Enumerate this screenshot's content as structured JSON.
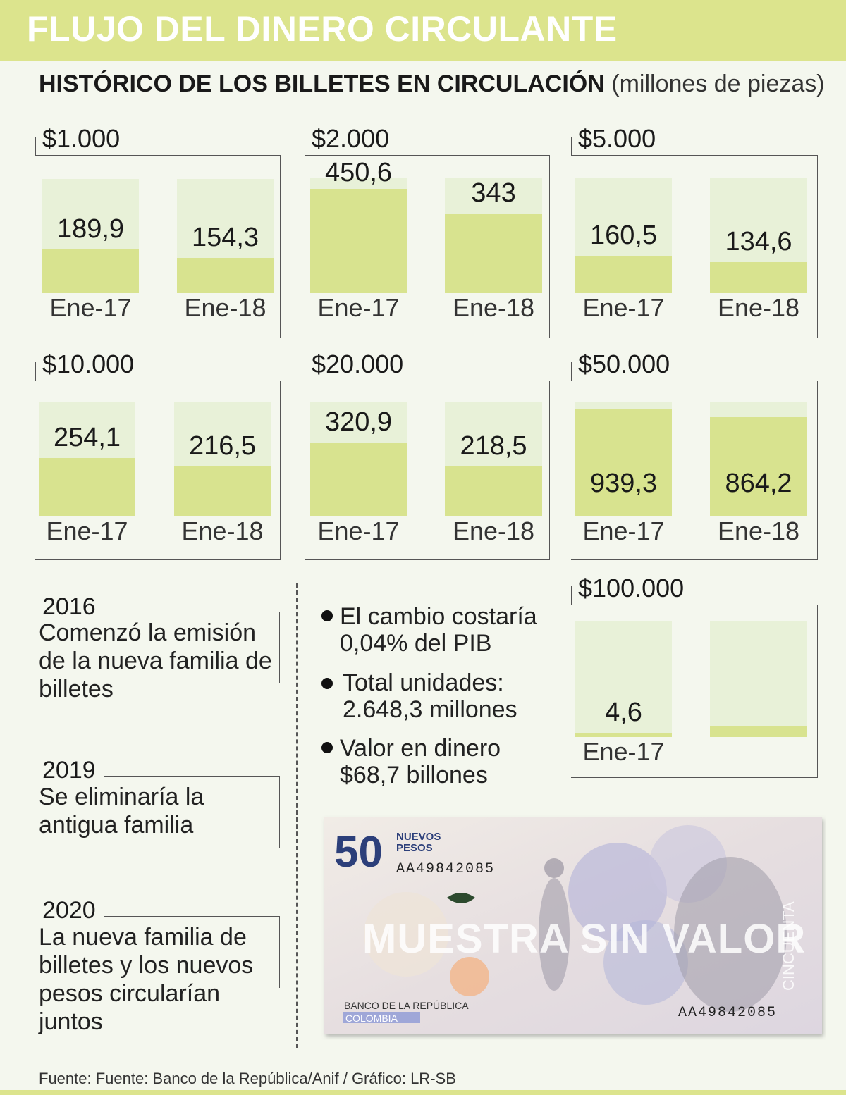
{
  "header": {
    "title": "FLUJO DEL DINERO CIRCULANTE",
    "subtitle_bold": "HISTÓRICO DE LOS BILLETES EN CIRCULACIÓN",
    "subtitle_light": "(millones de piezas)"
  },
  "chart_data": [
    {
      "type": "bar",
      "title": "$1.000",
      "categories": [
        "Ene-17",
        "Ene-18"
      ],
      "values": [
        189.9,
        154.3
      ],
      "labels": [
        "189,9",
        "154,3"
      ],
      "ylim": [
        0,
        500
      ]
    },
    {
      "type": "bar",
      "title": "$2.000",
      "categories": [
        "Ene-17",
        "Ene-18"
      ],
      "values": [
        450.6,
        343
      ],
      "labels": [
        "450,6",
        "343"
      ],
      "ylim": [
        0,
        500
      ]
    },
    {
      "type": "bar",
      "title": "$5.000",
      "categories": [
        "Ene-17",
        "Ene-18"
      ],
      "values": [
        160.5,
        134.6
      ],
      "labels": [
        "160,5",
        "134,6"
      ],
      "ylim": [
        0,
        500
      ]
    },
    {
      "type": "bar",
      "title": "$10.000",
      "categories": [
        "Ene-17",
        "Ene-18"
      ],
      "values": [
        254.1,
        216.5
      ],
      "labels": [
        "254,1",
        "216,5"
      ],
      "ylim": [
        0,
        500
      ]
    },
    {
      "type": "bar",
      "title": "$20.000",
      "categories": [
        "Ene-17",
        "Ene-18"
      ],
      "values": [
        320.9,
        218.5
      ],
      "labels": [
        "320,9",
        "218,5"
      ],
      "ylim": [
        0,
        500
      ]
    },
    {
      "type": "bar",
      "title": "$50.000",
      "categories": [
        "Ene-17",
        "Ene-18"
      ],
      "values": [
        939.3,
        864.2
      ],
      "labels": [
        "939,3",
        "864,2"
      ],
      "ylim": [
        0,
        1000
      ]
    },
    {
      "type": "bar",
      "title": "$100.000",
      "categories": [
        "Ene-17",
        ""
      ],
      "values": [
        4.6,
        null
      ],
      "labels": [
        "4,6",
        ""
      ],
      "ylim": [
        0,
        250
      ]
    }
  ],
  "timeline": [
    {
      "year": "2016",
      "text": "Comenzó la emisión de la nueva familia de billetes"
    },
    {
      "year": "2019",
      "text": "Se eliminaría la antigua familia"
    },
    {
      "year": "2020",
      "text": "La nueva familia  de billetes y los nuevos pesos circularían juntos"
    }
  ],
  "facts": [
    {
      "line1": "El cambio costaría",
      "line2": "0,04% del PIB"
    },
    {
      "line1": "Total unidades:",
      "line2": "2.648,3 millones"
    },
    {
      "line1": "Valor en dinero",
      "line2": "$68,7 billones"
    }
  ],
  "banknote": {
    "denomination": "50",
    "currency_line1": "NUEVOS",
    "currency_line2": "PESOS",
    "serial": "AA49842085",
    "watermark": "MUESTRA SIN VALOR",
    "vertical_text": "CINCUENTA",
    "issuer": "BANCO DE LA REPÚBLICA",
    "country": "COLOMBIA"
  },
  "footer": {
    "source": "Fuente: Fuente: Banco de la República/Anif / Gráfico: LR-SB"
  },
  "colors": {
    "accent": "#dce48d",
    "bar": "#d8e38f",
    "bar_bg": "#e8f1d8",
    "background": "#f4f7ee"
  }
}
